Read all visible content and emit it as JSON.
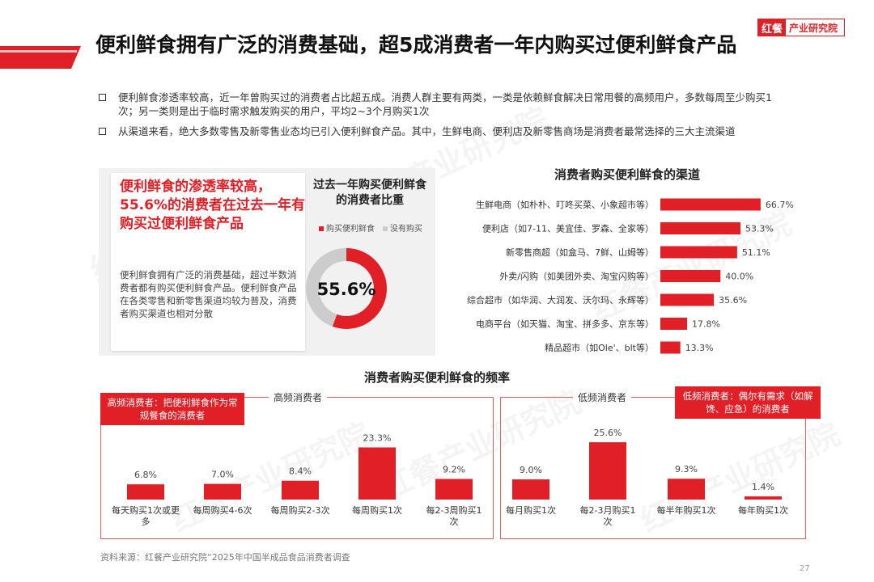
{
  "header": {
    "title": "便利鲜食拥有广泛的消费基础，超5成消费者一年内购买过便利鲜食产品",
    "logo_mark": "红餐",
    "logo_text": "产业研究院"
  },
  "bullets": [
    "便利鲜食渗透率较高，近一年曾购买过的消费者占比超五成。消费人群主要有两类，一类是依赖鲜食解决日常用餐的高频用户，多数每周至少购买1次；另一类则是出于临时需求触发购买的用户，平均2~3个月购买1次",
    "从渠道来看，绝大多数零售及新零售业态均已引入便利鲜食产品。其中，生鲜电商、便利店及新零售商场是消费者最常选择的三大主流渠道"
  ],
  "highlight": {
    "headline": "便利鲜食的渗透率较高，55.6%的消费者在过去一年有购买过便利鲜食产品",
    "description": "便利鲜食拥有广泛的消费基础，超过半数消费者都有购买便利鲜食产品。便利鲜食产品在各类零售和新零售渠道均较为普及，消费者购买渠道也相对分散"
  },
  "watermark": "红餐产业研究院",
  "source": "资料来源：红餐产业研究院“2025年中国半成品食品消费者调查",
  "page_number": "27",
  "colors": {
    "accent": "#e11f26",
    "grey": "#cccccc"
  },
  "chart_data": [
    {
      "type": "pie",
      "title": "过去一年购买便利鲜食的消费者比重",
      "labels": [
        "购买便利鲜食",
        "没有购买"
      ],
      "values": [
        55.6,
        44.4
      ],
      "center_label": "55.6%"
    },
    {
      "type": "bar",
      "orientation": "horizontal",
      "title": "消费者购买便利鲜食的渠道",
      "categories": [
        "生鲜电商（如朴朴、叮咚买菜、小象超市等）",
        "便利店（如7-11、美宜佳、罗森、全家等）",
        "新零售商超（如盒马、7鲜、山姆等）",
        "外卖/闪购（如美团外卖、淘宝闪购等）",
        "综合超市（如华润、大润发、沃尔玛、永辉等）",
        "电商平台（如天猫、淘宝、拼多多、京东等）",
        "精品超市（如Ole'、blt等）"
      ],
      "values": [
        66.7,
        53.3,
        51.1,
        40.0,
        35.6,
        17.8,
        13.3
      ],
      "value_labels": [
        "66.7%",
        "53.3%",
        "51.1%",
        "40.0%",
        "35.6%",
        "17.8%",
        "13.3%"
      ],
      "xlim": [
        0,
        70
      ]
    },
    {
      "type": "bar",
      "title": "消费者购买便利鲜食的频率",
      "groups": [
        {
          "name": "高频消费者",
          "callout": "高频消费者：把便利鲜食作为常规餐食的消费者",
          "categories": [
            "每天购买1次或更多",
            "每周购买4-6次",
            "每周购买2-3次",
            "每周购买1次",
            "每2-3周购买1次"
          ],
          "values": [
            6.8,
            7.0,
            8.4,
            23.3,
            9.2
          ],
          "value_labels": [
            "6.8%",
            "7.0%",
            "8.4%",
            "23.3%",
            "9.2%"
          ]
        },
        {
          "name": "低频消费者",
          "callout": "低频消费者：偶尔有需求（如解馋、应急）的消费者",
          "categories": [
            "每月购买1次",
            "每2-3月购买1次",
            "每半年购买1次",
            "每年购买1次"
          ],
          "values": [
            9.0,
            25.6,
            9.3,
            1.4
          ],
          "value_labels": [
            "9.0%",
            "25.6%",
            "9.3%",
            "1.4%"
          ]
        }
      ],
      "ylim": [
        0,
        26
      ]
    }
  ]
}
